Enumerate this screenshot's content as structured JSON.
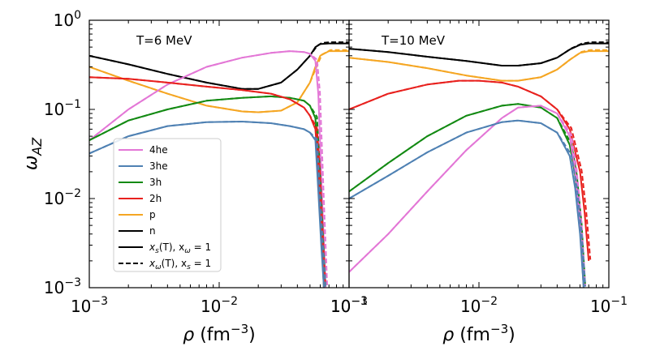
{
  "chart_data": {
    "type": "line",
    "ylabel": "ω_AZ",
    "xlabel": "ρ (fm⁻³)",
    "yaxis": {
      "scale": "log",
      "range": [
        0.001,
        1.0
      ],
      "ticks": [
        {
          "value": 0.001,
          "mantissa": "10",
          "exp": "−3"
        },
        {
          "value": 0.01,
          "mantissa": "10",
          "exp": "−2"
        },
        {
          "value": 0.1,
          "mantissa": "10",
          "exp": "−1"
        },
        {
          "value": 1.0,
          "mantissa": "10",
          "exp": "0"
        }
      ]
    },
    "xaxis": {
      "scale": "log",
      "range": [
        0.001,
        0.1
      ],
      "ticks": [
        {
          "value": 0.001,
          "mantissa": "10",
          "exp": "−3"
        },
        {
          "value": 0.01,
          "mantissa": "10",
          "exp": "−2"
        },
        {
          "value": 0.1,
          "mantissa": "10",
          "exp": "−1"
        }
      ]
    },
    "xlabel_base": "ρ (fm",
    "xlabel_exp": "−3",
    "xlabel_close": ")",
    "ylabel_main": "ω",
    "ylabel_sub": "AZ",
    "legend": {
      "location": "lower-left of left panel",
      "entries": [
        {
          "label": "4he",
          "color": "#e377d6",
          "style": "solid"
        },
        {
          "label": "3he",
          "color": "#4f81b3",
          "style": "solid"
        },
        {
          "label": "3h",
          "color": "#138a13",
          "style": "solid"
        },
        {
          "label": "2h",
          "color": "#e8211e",
          "style": "solid"
        },
        {
          "label": "p",
          "color": "#f5a623",
          "style": "solid"
        },
        {
          "label": "n",
          "color": "#000000",
          "style": "solid"
        },
        {
          "label": "x_s(T), x_ω = 1",
          "color": "#000000",
          "style": "solid",
          "parts": [
            "x",
            "s",
            "(T), x",
            "ω",
            " = 1"
          ]
        },
        {
          "label": "x_ω(T), x_s = 1",
          "color": "#000000",
          "style": "dashed",
          "parts": [
            "x",
            "ω",
            "(T), x",
            "s",
            " = 1"
          ]
        }
      ]
    },
    "panels": [
      {
        "title": "T=6 MeV",
        "series": [
          {
            "name": "n",
            "color": "#000000",
            "x": [
              0.001,
              0.002,
              0.004,
              0.008,
              0.015,
              0.02,
              0.03,
              0.04,
              0.05,
              0.055,
              0.06,
              0.07,
              0.1
            ],
            "values": [
              0.4,
              0.32,
              0.25,
              0.2,
              0.17,
              0.17,
              0.2,
              0.28,
              0.4,
              0.5,
              0.54,
              0.55,
              0.55
            ]
          },
          {
            "name": "p",
            "color": "#f5a623",
            "x": [
              0.001,
              0.002,
              0.004,
              0.008,
              0.015,
              0.02,
              0.03,
              0.04,
              0.05,
              0.055,
              0.06,
              0.07,
              0.1
            ],
            "values": [
              0.3,
              0.21,
              0.15,
              0.11,
              0.095,
              0.093,
              0.097,
              0.12,
              0.2,
              0.3,
              0.4,
              0.45,
              0.45
            ]
          },
          {
            "name": "4he",
            "color": "#e377d6",
            "x": [
              0.001,
              0.002,
              0.004,
              0.008,
              0.015,
              0.025,
              0.035,
              0.045,
              0.05,
              0.055,
              0.058,
              0.062,
              0.066
            ],
            "values": [
              0.045,
              0.1,
              0.19,
              0.3,
              0.38,
              0.43,
              0.45,
              0.44,
              0.42,
              0.35,
              0.15,
              0.01,
              0.001
            ]
          },
          {
            "name": "3h",
            "color": "#138a13",
            "x": [
              0.001,
              0.002,
              0.004,
              0.008,
              0.015,
              0.025,
              0.035,
              0.045,
              0.05,
              0.055,
              0.058,
              0.061,
              0.064
            ],
            "values": [
              0.045,
              0.075,
              0.1,
              0.125,
              0.135,
              0.14,
              0.135,
              0.125,
              0.11,
              0.08,
              0.02,
              0.004,
              0.001
            ]
          },
          {
            "name": "2h",
            "color": "#e8211e",
            "x": [
              0.001,
              0.002,
              0.004,
              0.008,
              0.015,
              0.025,
              0.035,
              0.045,
              0.05,
              0.055,
              0.058,
              0.061,
              0.064
            ],
            "values": [
              0.23,
              0.22,
              0.2,
              0.18,
              0.165,
              0.15,
              0.13,
              0.105,
              0.085,
              0.06,
              0.02,
              0.004,
              0.001
            ]
          },
          {
            "name": "3he",
            "color": "#4f81b3",
            "x": [
              0.001,
              0.002,
              0.004,
              0.008,
              0.015,
              0.025,
              0.035,
              0.045,
              0.05,
              0.055,
              0.058,
              0.061,
              0.064
            ],
            "values": [
              0.032,
              0.05,
              0.065,
              0.072,
              0.073,
              0.07,
              0.065,
              0.06,
              0.055,
              0.045,
              0.012,
              0.003,
              0.001
            ]
          }
        ]
      },
      {
        "title": "T=10 MeV",
        "series": [
          {
            "name": "n",
            "color": "#000000",
            "x": [
              0.001,
              0.002,
              0.004,
              0.008,
              0.015,
              0.02,
              0.03,
              0.04,
              0.05,
              0.06,
              0.07,
              0.1
            ],
            "values": [
              0.48,
              0.44,
              0.39,
              0.35,
              0.31,
              0.31,
              0.33,
              0.38,
              0.47,
              0.53,
              0.55,
              0.55
            ]
          },
          {
            "name": "p",
            "color": "#f5a623",
            "x": [
              0.001,
              0.002,
              0.004,
              0.008,
              0.015,
              0.02,
              0.03,
              0.04,
              0.05,
              0.06,
              0.07,
              0.1
            ],
            "values": [
              0.38,
              0.34,
              0.29,
              0.24,
              0.21,
              0.21,
              0.23,
              0.28,
              0.36,
              0.43,
              0.45,
              0.45
            ]
          },
          {
            "name": "2h",
            "color": "#e8211e",
            "x": [
              0.001,
              0.002,
              0.004,
              0.007,
              0.01,
              0.015,
              0.02,
              0.03,
              0.04,
              0.05,
              0.06,
              0.065,
              0.07
            ],
            "values": [
              0.1,
              0.15,
              0.19,
              0.21,
              0.21,
              0.2,
              0.18,
              0.14,
              0.1,
              0.06,
              0.02,
              0.007,
              0.002
            ]
          },
          {
            "name": "3h",
            "color": "#138a13",
            "x": [
              0.001,
              0.002,
              0.004,
              0.008,
              0.015,
              0.02,
              0.03,
              0.04,
              0.05,
              0.055,
              0.06,
              0.064
            ],
            "values": [
              0.012,
              0.025,
              0.05,
              0.085,
              0.11,
              0.115,
              0.105,
              0.08,
              0.04,
              0.018,
              0.005,
              0.001
            ]
          },
          {
            "name": "4he",
            "color": "#e377d6",
            "x": [
              0.001,
              0.002,
              0.004,
              0.008,
              0.015,
              0.02,
              0.03,
              0.04,
              0.05,
              0.055,
              0.06,
              0.064
            ],
            "values": [
              0.0015,
              0.004,
              0.012,
              0.035,
              0.08,
              0.105,
              0.11,
              0.09,
              0.05,
              0.02,
              0.005,
              0.001
            ]
          },
          {
            "name": "3he",
            "color": "#4f81b3",
            "x": [
              0.001,
              0.002,
              0.004,
              0.008,
              0.015,
              0.02,
              0.03,
              0.04,
              0.05,
              0.055,
              0.06,
              0.064
            ],
            "values": [
              0.01,
              0.018,
              0.033,
              0.055,
              0.072,
              0.075,
              0.07,
              0.055,
              0.03,
              0.013,
              0.004,
              0.001
            ]
          }
        ]
      }
    ]
  }
}
